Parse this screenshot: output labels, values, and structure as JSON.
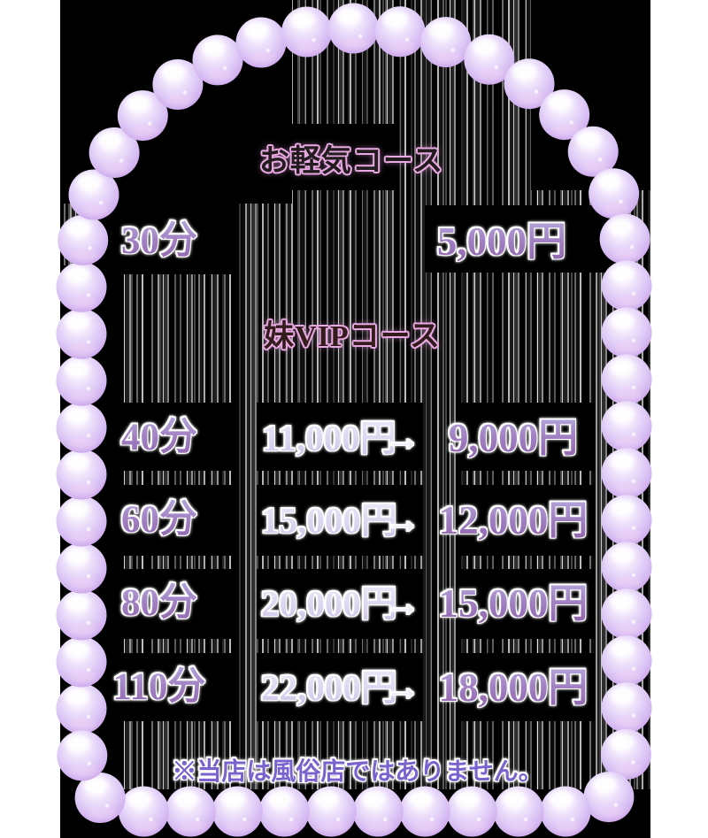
{
  "light_course": {
    "title": "お軽気コース",
    "rows": [
      {
        "duration": "30分",
        "price": "5,000円"
      }
    ]
  },
  "vip_course": {
    "title": "妹VIPコース",
    "rows": [
      {
        "duration": "40分",
        "regular": "11,000円",
        "arrow": "→",
        "discounted": "9,000円"
      },
      {
        "duration": "60分",
        "regular": "15,000円",
        "arrow": "→",
        "discounted": "12,000円"
      },
      {
        "duration": "80分",
        "regular": "20,000円",
        "arrow": "→",
        "discounted": "15,000円"
      },
      {
        "duration": "110分",
        "regular": "22,000円",
        "arrow": "→",
        "discounted": "18,000円"
      }
    ]
  },
  "footer_note": "※当店は風俗店ではありません。",
  "colors": {
    "canvas_white": "#ffffff",
    "glitch_black": "#000000",
    "pearl_lavender": "#dcc6f5",
    "duration_purple": "#8a5ca6",
    "regular_price_pale": "#dcd5f0",
    "title_outline_pink": "#e9a9e2",
    "note_purple": "#7a63cd"
  }
}
